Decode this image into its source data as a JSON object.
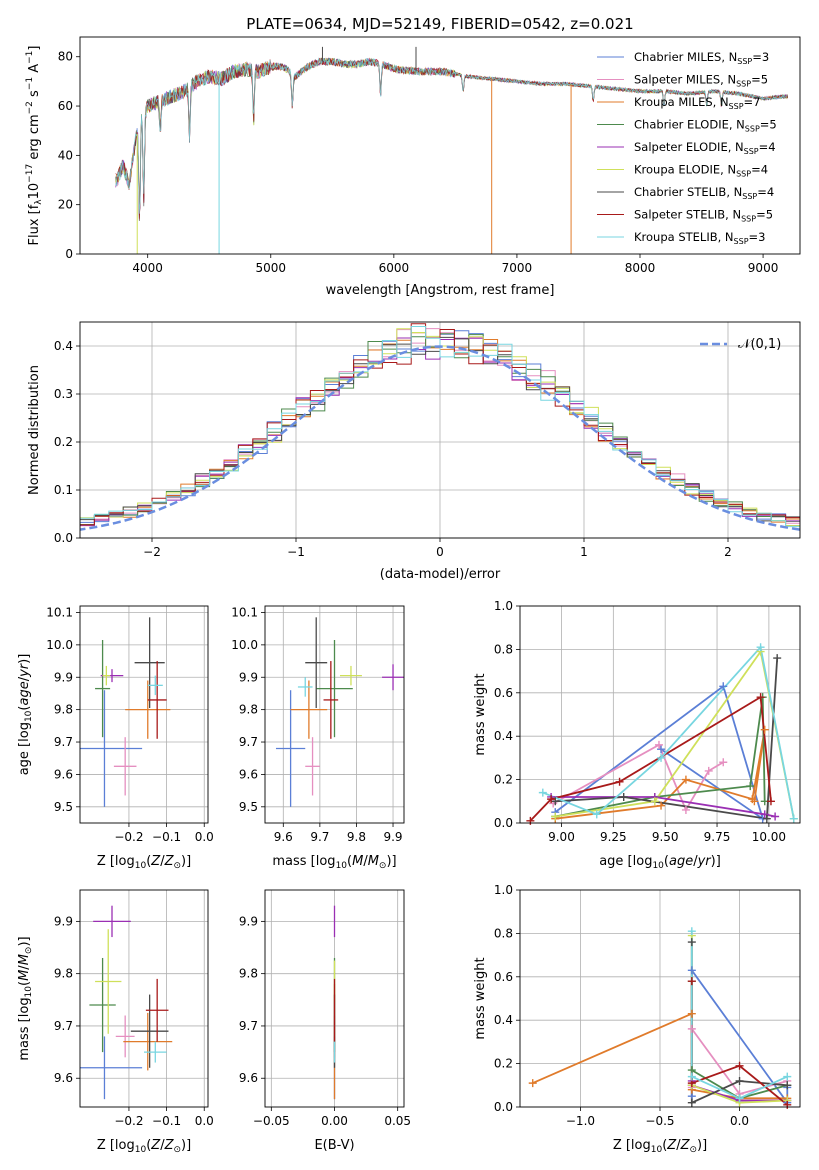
{
  "title": "PLATE=0634, MJD=52149, FIBERID=0542, z=0.021",
  "colors": {
    "Chabrier MILES": "#5b7fd6",
    "Salpeter MILES": "#e58fc0",
    "Kroupa MILES": "#e07b2b",
    "Chabrier ELODIE": "#4d8a4d",
    "Salpeter ELODIE": "#9a2fb3",
    "Kroupa ELODIE": "#cfe05a",
    "Chabrier STELIB": "#4a4a4a",
    "Salpeter STELIB": "#a81a1a",
    "Kroupa STELIB": "#78d6e0"
  },
  "legend_spectrum": [
    {
      "key": "Chabrier MILES",
      "label": "Chabrier MILES, N",
      "sub": "SSP",
      "suffix": "=3"
    },
    {
      "key": "Salpeter MILES",
      "label": "Salpeter MILES, N",
      "sub": "SSP",
      "suffix": "=5"
    },
    {
      "key": "Kroupa MILES",
      "label": "Kroupa MILES, N",
      "sub": "SSP",
      "suffix": "=7"
    },
    {
      "key": "Chabrier ELODIE",
      "label": "Chabrier ELODIE, N",
      "sub": "SSP",
      "suffix": "=5"
    },
    {
      "key": "Salpeter ELODIE",
      "label": "Salpeter ELODIE, N",
      "sub": "SSP",
      "suffix": "=4"
    },
    {
      "key": "Kroupa ELODIE",
      "label": "Kroupa ELODIE, N",
      "sub": "SSP",
      "suffix": "=4"
    },
    {
      "key": "Chabrier STELIB",
      "label": "Chabrier STELIB, N",
      "sub": "SSP",
      "suffix": "=4"
    },
    {
      "key": "Salpeter STELIB",
      "label": "Salpeter STELIB, N",
      "sub": "SSP",
      "suffix": "=5"
    },
    {
      "key": "Kroupa STELIB",
      "label": "Kroupa STELIB, N",
      "sub": "SSP",
      "suffix": "=3"
    }
  ],
  "chart_data": [
    {
      "id": "spectrum",
      "type": "line",
      "xlabel": "wavelength [Angstrom, rest frame]",
      "ylabel": "Flux [f_λ10^-17 erg cm^-2 s^-1 A^-1]",
      "xlim": [
        3450,
        9300
      ],
      "ylim": [
        0,
        88
      ],
      "xticks": [
        4000,
        5000,
        6000,
        7000,
        8000,
        9000
      ],
      "yticks": [
        0,
        20,
        40,
        60,
        80
      ],
      "anchors_x": [
        3750,
        3800,
        3850,
        3900,
        3950,
        4000,
        4100,
        4200,
        4300,
        4400,
        4500,
        4600,
        4700,
        4800,
        4900,
        5000,
        5100,
        5200,
        5300,
        5400,
        5500,
        5600,
        5700,
        5800,
        5900,
        6000,
        6200,
        6400,
        6600,
        6800,
        7000,
        7200,
        7400,
        7600,
        7800,
        8000,
        8200,
        8400,
        8600,
        8800,
        9000,
        9200
      ],
      "anchors_y": [
        30,
        36,
        28,
        46,
        55,
        60,
        62,
        64,
        66,
        70,
        72,
        71,
        74,
        75,
        74,
        76,
        76,
        72,
        76,
        78,
        78,
        77,
        77,
        78,
        77,
        75,
        74,
        74,
        72,
        71,
        70,
        69,
        69,
        68,
        67,
        66,
        66,
        65,
        66,
        65,
        63,
        64
      ],
      "dips": [
        [
          3934,
          14
        ],
        [
          3968,
          22
        ],
        [
          4102,
          50
        ],
        [
          4340,
          48
        ],
        [
          4861,
          54
        ],
        [
          5175,
          60
        ],
        [
          5892,
          64
        ],
        [
          6563,
          66
        ],
        [
          7620,
          62
        ],
        [
          8195,
          60
        ],
        [
          8542,
          60
        ],
        [
          8662,
          60
        ]
      ],
      "glitches": [
        [
          4580,
          0,
          "Kroupa STELIB"
        ],
        [
          6795,
          0,
          "Kroupa MILES"
        ],
        [
          3915,
          0,
          "Kroupa ELODIE"
        ],
        [
          7440,
          0,
          "Kroupa MILES"
        ],
        [
          6180,
          84,
          "Chabrier STELIB"
        ],
        [
          5420,
          84,
          "Chabrier STELIB"
        ]
      ]
    },
    {
      "id": "residuals",
      "type": "histogram",
      "xlabel": "(data-model)/error",
      "ylabel": "Normed distribution",
      "xlim": [
        -2.5,
        2.5
      ],
      "ylim": [
        0,
        0.45
      ],
      "xticks": [
        -2,
        -1,
        0,
        1,
        2
      ],
      "yticks": [
        0.0,
        0.1,
        0.2,
        0.3,
        0.4
      ],
      "bin_width": 0.1,
      "curve": {
        "label": "𝒩(0,1)",
        "color": "#6a8ee0"
      }
    },
    {
      "id": "age_vs_Z",
      "type": "scatter",
      "xlabel": "Z [log10(Z/Z⊙)]",
      "ylabel": "age  [log10(age/yr)]",
      "xlim": [
        -0.33,
        0.01
      ],
      "ylim": [
        9.45,
        10.12
      ],
      "xticks": [
        -0.2,
        -0.1,
        0.0
      ],
      "yticks": [
        9.5,
        9.6,
        9.7,
        9.8,
        9.9,
        10.0,
        10.1
      ],
      "points": [
        {
          "series": "Chabrier MILES",
          "x": -0.265,
          "y": 9.68,
          "xerr": 0.1,
          "yerr": 0.18
        },
        {
          "series": "Salpeter MILES",
          "x": -0.21,
          "y": 9.625,
          "xerr": 0.03,
          "yerr": 0.09
        },
        {
          "series": "Kroupa MILES",
          "x": -0.15,
          "y": 9.8,
          "xerr": 0.06,
          "yerr": 0.09
        },
        {
          "series": "Chabrier ELODIE",
          "x": -0.27,
          "y": 9.865,
          "xerr": 0.02,
          "yerr": 0.15
        },
        {
          "series": "Salpeter ELODIE",
          "x": -0.245,
          "y": 9.905,
          "xerr": 0.03,
          "yerr": 0.02
        },
        {
          "series": "Kroupa ELODIE",
          "x": -0.26,
          "y": 9.905,
          "xerr": 0.01,
          "yerr": 0.03
        },
        {
          "series": "Chabrier STELIB",
          "x": -0.145,
          "y": 9.945,
          "xerr": 0.04,
          "yerr": 0.14
        },
        {
          "series": "Salpeter STELIB",
          "x": -0.125,
          "y": 9.83,
          "xerr": 0.025,
          "yerr": 0.12
        },
        {
          "series": "Kroupa STELIB",
          "x": -0.13,
          "y": 9.875,
          "xerr": 0.02,
          "yerr": 0.03
        }
      ]
    },
    {
      "id": "age_vs_mass",
      "type": "scatter",
      "xlabel": "mass [log10(M/M⊙)]",
      "ylabel": "",
      "xlim": [
        9.55,
        9.93
      ],
      "ylim": [
        9.45,
        10.12
      ],
      "xticks": [
        9.6,
        9.7,
        9.8,
        9.9
      ],
      "yticks": [
        9.5,
        9.6,
        9.7,
        9.8,
        9.9,
        10.0,
        10.1
      ],
      "points": [
        {
          "series": "Chabrier MILES",
          "x": 9.62,
          "y": 9.68,
          "xerr": 0.04,
          "yerr": 0.18
        },
        {
          "series": "Salpeter MILES",
          "x": 9.68,
          "y": 9.625,
          "xerr": 0.02,
          "yerr": 0.09
        },
        {
          "series": "Kroupa MILES",
          "x": 9.67,
          "y": 9.8,
          "xerr": 0.05,
          "yerr": 0.09
        },
        {
          "series": "Chabrier ELODIE",
          "x": 9.74,
          "y": 9.865,
          "xerr": 0.05,
          "yerr": 0.15
        },
        {
          "series": "Salpeter ELODIE",
          "x": 9.9,
          "y": 9.9,
          "xerr": 0.03,
          "yerr": 0.04
        },
        {
          "series": "Kroupa ELODIE",
          "x": 9.785,
          "y": 9.905,
          "xerr": 0.03,
          "yerr": 0.03
        },
        {
          "series": "Chabrier STELIB",
          "x": 9.69,
          "y": 9.945,
          "xerr": 0.03,
          "yerr": 0.14
        },
        {
          "series": "Salpeter STELIB",
          "x": 9.73,
          "y": 9.83,
          "xerr": 0.02,
          "yerr": 0.12
        },
        {
          "series": "Kroupa STELIB",
          "x": 9.66,
          "y": 9.87,
          "xerr": 0.02,
          "yerr": 0.03
        }
      ]
    },
    {
      "id": "massweight_vs_age",
      "type": "line",
      "xlabel": "age  [log10(age/yr)]",
      "ylabel": "mass weight",
      "xlim": [
        8.8,
        10.15
      ],
      "ylim": [
        0,
        1.0
      ],
      "xticks": [
        9.0,
        9.25,
        9.5,
        9.75,
        10.0
      ],
      "yticks": [
        0.0,
        0.2,
        0.4,
        0.6,
        0.8,
        1.0
      ],
      "series": [
        {
          "name": "Chabrier MILES",
          "x": [
            8.97,
            9.78,
            9.97,
            9.48
          ],
          "y": [
            0.05,
            0.63,
            0.02,
            0.34
          ]
        },
        {
          "name": "Salpeter MILES",
          "x": [
            8.96,
            9.47,
            9.6,
            9.71,
            9.78
          ],
          "y": [
            0.09,
            0.36,
            0.06,
            0.24,
            0.28
          ]
        },
        {
          "name": "Kroupa MILES",
          "x": [
            8.97,
            9.48,
            9.6,
            9.92,
            9.98,
            9.93
          ],
          "y": [
            0.02,
            0.08,
            0.2,
            0.11,
            0.43,
            0.1
          ]
        },
        {
          "name": "Chabrier ELODIE",
          "x": [
            8.97,
            9.45,
            9.91,
            9.97,
            9.98
          ],
          "y": [
            0.03,
            0.12,
            0.17,
            0.58,
            0.1
          ]
        },
        {
          "name": "Salpeter ELODIE",
          "x": [
            8.95,
            9.45,
            9.98,
            10.03
          ],
          "y": [
            0.12,
            0.12,
            0.04,
            0.03
          ]
        },
        {
          "name": "Kroupa ELODIE",
          "x": [
            8.97,
            9.45,
            9.96,
            10.12
          ],
          "y": [
            0.03,
            0.1,
            0.79,
            0.02
          ]
        },
        {
          "name": "Chabrier STELIB",
          "x": [
            8.97,
            9.3,
            9.99,
            10.04
          ],
          "y": [
            0.1,
            0.12,
            0.02,
            0.76
          ]
        },
        {
          "name": "Salpeter STELIB",
          "x": [
            8.85,
            8.95,
            9.28,
            9.96,
            10.01
          ],
          "y": [
            0.01,
            0.11,
            0.19,
            0.58,
            0.1
          ]
        },
        {
          "name": "Kroupa STELIB",
          "x": [
            8.91,
            9.17,
            9.48,
            9.96,
            10.12
          ],
          "y": [
            0.14,
            0.04,
            0.3,
            0.81,
            0.02
          ]
        }
      ]
    },
    {
      "id": "mass_vs_Z",
      "type": "scatter",
      "xlabel": "Z [log10(Z/Z⊙)]",
      "ylabel": "mass [log10(M/M⊙)]",
      "xlim": [
        -0.33,
        0.01
      ],
      "ylim": [
        9.545,
        9.96
      ],
      "xticks": [
        -0.2,
        -0.1,
        0.0
      ],
      "yticks": [
        9.6,
        9.7,
        9.8,
        9.9
      ],
      "points": [
        {
          "series": "Chabrier MILES",
          "x": -0.265,
          "y": 9.62,
          "xerr": 0.1,
          "yerr": 0.06
        },
        {
          "series": "Salpeter MILES",
          "x": -0.21,
          "y": 9.68,
          "xerr": 0.025,
          "yerr": 0.04
        },
        {
          "series": "Kroupa MILES",
          "x": -0.15,
          "y": 9.67,
          "xerr": 0.065,
          "yerr": 0.055
        },
        {
          "series": "Chabrier ELODIE",
          "x": -0.27,
          "y": 9.74,
          "xerr": 0.035,
          "yerr": 0.09
        },
        {
          "series": "Salpeter ELODIE",
          "x": -0.245,
          "y": 9.9,
          "xerr": 0.05,
          "yerr": 0.03
        },
        {
          "series": "Kroupa ELODIE",
          "x": -0.255,
          "y": 9.785,
          "xerr": 0.035,
          "yerr": 0.1
        },
        {
          "series": "Chabrier STELIB",
          "x": -0.145,
          "y": 9.69,
          "xerr": 0.05,
          "yerr": 0.07
        },
        {
          "series": "Salpeter STELIB",
          "x": -0.125,
          "y": 9.73,
          "xerr": 0.03,
          "yerr": 0.06
        },
        {
          "series": "Kroupa STELIB",
          "x": -0.13,
          "y": 9.65,
          "xerr": 0.03,
          "yerr": 0.02
        }
      ]
    },
    {
      "id": "mass_vs_EBV",
      "type": "scatter",
      "xlabel": "E(B-V)",
      "ylabel": "",
      "xlim": [
        -0.055,
        0.055
      ],
      "ylim": [
        9.545,
        9.96
      ],
      "xticks": [
        -0.05,
        0.0,
        0.05
      ],
      "yticks": [
        9.6,
        9.7,
        9.8,
        9.9
      ],
      "points": [
        {
          "series": "Chabrier MILES",
          "x": 0,
          "y": 9.62,
          "xerr": 0,
          "yerr": 0.06
        },
        {
          "series": "Salpeter MILES",
          "x": 0,
          "y": 9.68,
          "xerr": 0,
          "yerr": 0.04
        },
        {
          "series": "Kroupa MILES",
          "x": 0,
          "y": 9.67,
          "xerr": 0,
          "yerr": 0.11
        },
        {
          "series": "Chabrier ELODIE",
          "x": 0,
          "y": 9.74,
          "xerr": 0,
          "yerr": 0.09
        },
        {
          "series": "Salpeter ELODIE",
          "x": 0,
          "y": 9.9,
          "xerr": 0,
          "yerr": 0.03
        },
        {
          "series": "Kroupa ELODIE",
          "x": 0,
          "y": 9.785,
          "xerr": 0,
          "yerr": 0.04
        },
        {
          "series": "Chabrier STELIB",
          "x": 0,
          "y": 9.69,
          "xerr": 0,
          "yerr": 0.07
        },
        {
          "series": "Salpeter STELIB",
          "x": 0,
          "y": 9.73,
          "xerr": 0,
          "yerr": 0.06
        },
        {
          "series": "Kroupa STELIB",
          "x": 0,
          "y": 9.65,
          "xerr": 0,
          "yerr": 0.02
        }
      ]
    },
    {
      "id": "massweight_vs_Z",
      "type": "line",
      "xlabel": "Z [log10(Z/Z⊙)]",
      "ylabel": "mass weight",
      "xlim": [
        -1.38,
        0.38
      ],
      "ylim": [
        0,
        1.0
      ],
      "xticks": [
        -1.0,
        -0.5,
        0.0
      ],
      "yticks": [
        0.0,
        0.2,
        0.4,
        0.6,
        0.8,
        1.0
      ],
      "series": [
        {
          "name": "Chabrier MILES",
          "x": [
            -0.3,
            -0.3,
            0.3,
            0.3
          ],
          "y": [
            0.05,
            0.63,
            0.02,
            0.09
          ]
        },
        {
          "name": "Salpeter MILES",
          "x": [
            -0.3,
            -0.3,
            0.0,
            0.3
          ],
          "y": [
            0.09,
            0.36,
            0.06,
            0.12
          ]
        },
        {
          "name": "Kroupa MILES",
          "x": [
            -1.3,
            -0.3,
            -0.3,
            0.0,
            0.3
          ],
          "y": [
            0.11,
            0.43,
            0.08,
            0.04,
            0.04
          ]
        },
        {
          "name": "Chabrier ELODIE",
          "x": [
            -0.3,
            -0.3,
            0.0,
            0.3
          ],
          "y": [
            0.58,
            0.17,
            0.04,
            0.1
          ]
        },
        {
          "name": "Salpeter ELODIE",
          "x": [
            -0.3,
            -0.3,
            0.0,
            0.3
          ],
          "y": [
            0.12,
            0.1,
            0.03,
            0.03
          ]
        },
        {
          "name": "Kroupa ELODIE",
          "x": [
            -0.3,
            -0.3,
            0.0,
            0.3
          ],
          "y": [
            0.79,
            0.1,
            0.02,
            0.03
          ]
        },
        {
          "name": "Chabrier STELIB",
          "x": [
            -0.3,
            -0.3,
            0.0,
            0.3
          ],
          "y": [
            0.76,
            0.02,
            0.12,
            0.1
          ]
        },
        {
          "name": "Salpeter STELIB",
          "x": [
            -0.3,
            -0.3,
            0.0,
            0.3
          ],
          "y": [
            0.58,
            0.11,
            0.19,
            0.01
          ]
        },
        {
          "name": "Kroupa STELIB",
          "x": [
            -0.3,
            -0.3,
            0.0,
            0.3
          ],
          "y": [
            0.81,
            0.14,
            0.04,
            0.14
          ]
        }
      ]
    }
  ]
}
